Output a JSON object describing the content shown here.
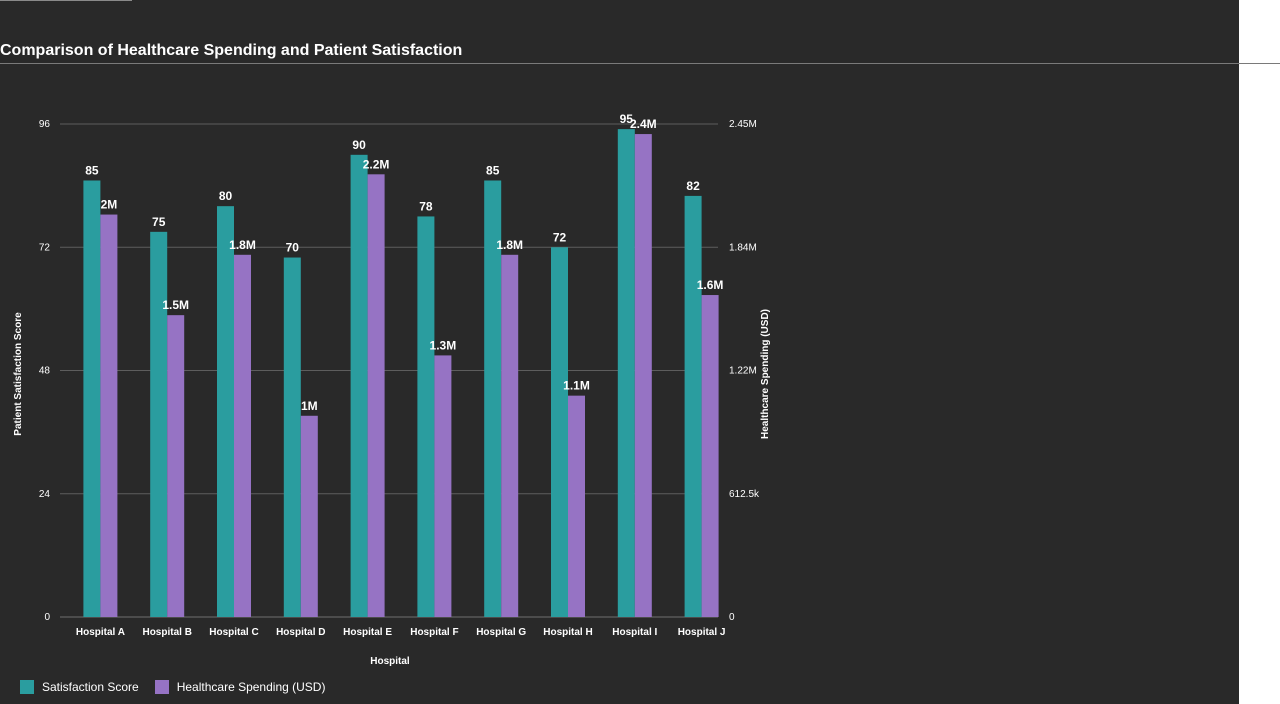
{
  "title": "Comparison of Healthcare Spending and Patient Satisfaction",
  "legend": {
    "items": [
      {
        "label": "Satisfaction Score",
        "color": "#2a9d9f"
      },
      {
        "label": "Healthcare Spending (USD)",
        "color": "#9673c4"
      }
    ]
  },
  "chart_data": {
    "type": "bar",
    "title": "Comparison of Healthcare Spending and Patient Satisfaction",
    "xlabel": "Hospital",
    "ylabel": "Patient Satisfaction Score",
    "y2label": "Healthcare Spending (USD)",
    "categories": [
      "Hospital A",
      "Hospital B",
      "Hospital C",
      "Hospital D",
      "Hospital E",
      "Hospital F",
      "Hospital G",
      "Hospital H",
      "Hospital I",
      "Hospital J"
    ],
    "ylim": [
      0,
      96
    ],
    "y2lim": [
      0,
      2450000
    ],
    "yticks": [
      "0",
      "24",
      "48",
      "72",
      "96"
    ],
    "y2ticks": [
      "0",
      "612.5k",
      "1.22M",
      "1.84M",
      "2.45M"
    ],
    "grid": true,
    "legend_position": "bottom-left",
    "series": [
      {
        "name": "Satisfaction Score",
        "axis": "left",
        "color": "#2a9d9f",
        "values": [
          85,
          75,
          80,
          70,
          90,
          78,
          85,
          72,
          95,
          82
        ],
        "labels": [
          "85",
          "75",
          "80",
          "70",
          "90",
          "78",
          "85",
          "72",
          "95",
          "82"
        ]
      },
      {
        "name": "Healthcare Spending (USD)",
        "axis": "right",
        "color": "#9673c4",
        "values": [
          2000000,
          1500000,
          1800000,
          1000000,
          2200000,
          1300000,
          1800000,
          1100000,
          2400000,
          1600000
        ],
        "labels": [
          "2M",
          "1.5M",
          "1.8M",
          "1M",
          "2.2M",
          "1.3M",
          "1.8M",
          "1.1M",
          "2.4M",
          "1.6M"
        ]
      }
    ]
  }
}
